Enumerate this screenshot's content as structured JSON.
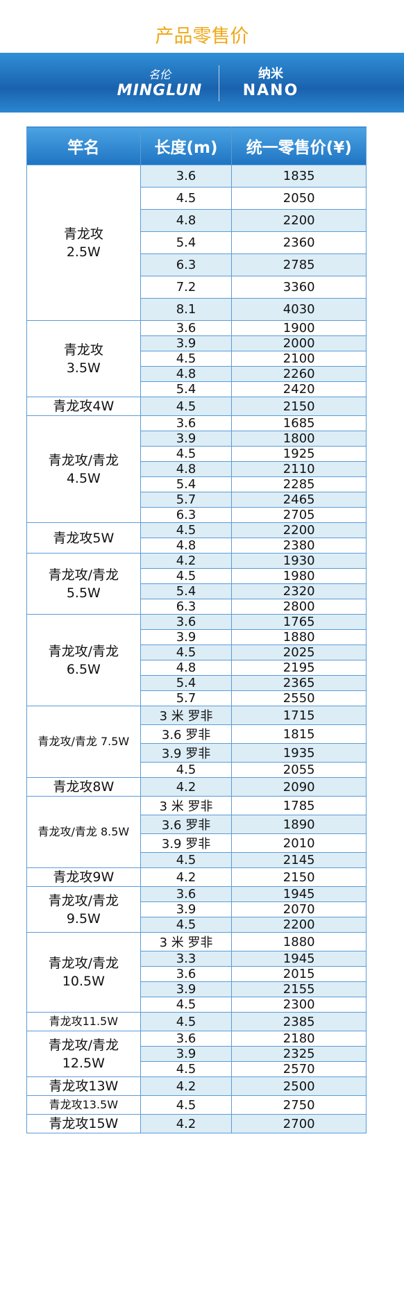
{
  "header": {
    "title": "产品零售价",
    "brand": {
      "name_cn": "名伦",
      "name_en": "MINGLUN"
    },
    "series": {
      "name_cn": "纳米",
      "name_en": "NANO"
    }
  },
  "table": {
    "columns": [
      "竿名",
      "长度(m)",
      "统一零售价(¥)"
    ],
    "groups": [
      {
        "name": [
          "青龙攻",
          "2.5W"
        ],
        "rows": [
          [
            "3.6",
            1835
          ],
          [
            "4.5",
            2050
          ],
          [
            "4.8",
            2200
          ],
          [
            "5.4",
            2360
          ],
          [
            "6.3",
            2785
          ],
          [
            "7.2",
            3360
          ],
          [
            "8.1",
            4030
          ]
        ]
      },
      {
        "name": [
          "青龙攻",
          "3.5W"
        ],
        "rows": [
          [
            "3.6",
            1900
          ],
          [
            "3.9",
            2000
          ],
          [
            "4.5",
            2100
          ],
          [
            "4.8",
            2260
          ],
          [
            "5.4",
            2420
          ]
        ]
      },
      {
        "name": [
          "青龙攻4W"
        ],
        "rows": [
          [
            "4.5",
            2150
          ]
        ]
      },
      {
        "name": [
          "青龙攻/青龙",
          "4.5W"
        ],
        "rows": [
          [
            "3.6",
            1685
          ],
          [
            "3.9",
            1800
          ],
          [
            "4.5",
            1925
          ],
          [
            "4.8",
            2110
          ],
          [
            "5.4",
            2285
          ],
          [
            "5.7",
            2465
          ],
          [
            "6.3",
            2705
          ]
        ]
      },
      {
        "name": [
          "青龙攻5W"
        ],
        "rows": [
          [
            "4.5",
            2200
          ],
          [
            "4.8",
            2380
          ]
        ]
      },
      {
        "name": [
          "青龙攻/青龙",
          "5.5W"
        ],
        "rows": [
          [
            "4.2",
            1930
          ],
          [
            "4.5",
            1980
          ],
          [
            "5.4",
            2320
          ],
          [
            "6.3",
            2800
          ]
        ]
      },
      {
        "name": [
          "青龙攻/青龙",
          "6.5W"
        ],
        "rows": [
          [
            "3.6",
            1765
          ],
          [
            "3.9",
            1880
          ],
          [
            "4.5",
            2025
          ],
          [
            "4.8",
            2195
          ],
          [
            "5.4",
            2365
          ],
          [
            "5.7",
            2550
          ]
        ]
      },
      {
        "name": [
          "青龙攻/青龙 7.5W"
        ],
        "rows": [
          [
            "3 米 罗非",
            1715
          ],
          [
            "3.6 罗非",
            1815
          ],
          [
            "3.9 罗非",
            1935
          ],
          [
            "4.5",
            2055
          ]
        ]
      },
      {
        "name": [
          "青龙攻8W"
        ],
        "rows": [
          [
            "4.2",
            2090
          ]
        ]
      },
      {
        "name": [
          "青龙攻/青龙 8.5W"
        ],
        "rows": [
          [
            "3 米 罗非",
            1785
          ],
          [
            "3.6 罗非",
            1890
          ],
          [
            "3.9 罗非",
            2010
          ],
          [
            "4.5",
            2145
          ]
        ]
      },
      {
        "name": [
          "青龙攻9W"
        ],
        "rows": [
          [
            "4.2",
            2150
          ]
        ]
      },
      {
        "name": [
          "青龙攻/青龙",
          "9.5W"
        ],
        "rows": [
          [
            "3.6",
            1945
          ],
          [
            "3.9",
            2070
          ],
          [
            "4.5",
            2200
          ]
        ]
      },
      {
        "name": [
          "青龙攻/青龙",
          "10.5W"
        ],
        "rows": [
          [
            "3 米 罗非",
            1880
          ],
          [
            "3.3",
            1945
          ],
          [
            "3.6",
            2015
          ],
          [
            "3.9",
            2155
          ],
          [
            "4.5",
            2300
          ]
        ]
      },
      {
        "name": [
          "青龙攻11.5W"
        ],
        "rows": [
          [
            "4.5",
            2385
          ]
        ]
      },
      {
        "name": [
          "青龙攻/青龙",
          "12.5W"
        ],
        "rows": [
          [
            "3.6",
            2180
          ],
          [
            "3.9",
            2325
          ],
          [
            "4.5",
            2570
          ]
        ]
      },
      {
        "name": [
          "青龙攻13W"
        ],
        "rows": [
          [
            "4.2",
            2500
          ]
        ]
      },
      {
        "name": [
          "青龙攻13.5W"
        ],
        "rows": [
          [
            "4.5",
            2750
          ]
        ]
      },
      {
        "name": [
          "青龙攻15W"
        ],
        "rows": [
          [
            "4.2",
            2700
          ]
        ]
      }
    ]
  }
}
